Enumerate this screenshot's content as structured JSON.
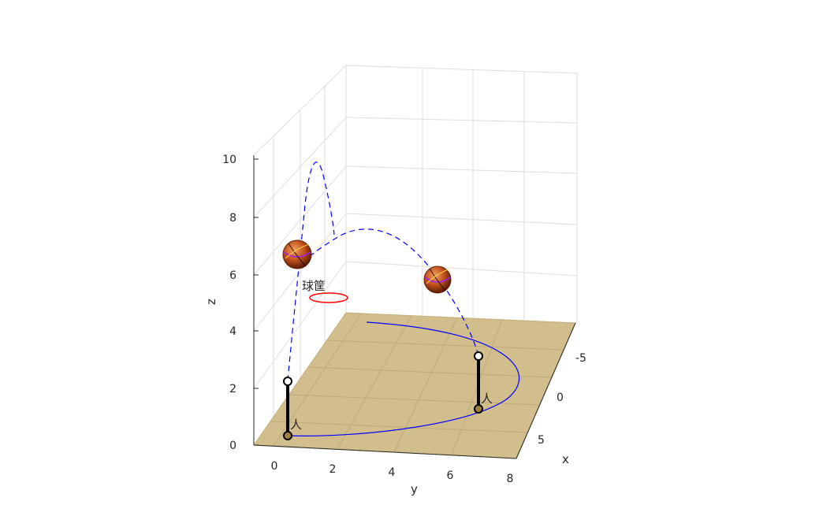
{
  "chart_data": {
    "type": "3d-line",
    "xlabel": "x",
    "ylabel": "y",
    "zlabel": "z",
    "x_ticks": [
      "-5",
      "0",
      "5"
    ],
    "y_ticks": [
      "0",
      "2",
      "4",
      "6",
      "8"
    ],
    "z_ticks": [
      "0",
      "2",
      "4",
      "6",
      "8",
      "10"
    ],
    "xlim": [
      -7,
      7
    ],
    "ylim": [
      -1,
      8
    ],
    "zlim": [
      0,
      10
    ],
    "grid": true,
    "floor_color": "#d2bd8c",
    "annotations": {
      "hoop": "球筐",
      "person1": "人",
      "person2": "人"
    },
    "hoop": {
      "x": 0,
      "y": 1.3,
      "z": 5.5,
      "color": "#ff0000"
    },
    "ground_path": {
      "color": "#0000ff",
      "description_points": [
        [
          0,
          0,
          0
        ],
        [
          5.5,
          3.0,
          0
        ],
        [
          0,
          8,
          0
        ],
        [
          -5.5,
          3.0,
          0
        ]
      ]
    },
    "trajectories": [
      {
        "color": "#0000ff",
        "style": "dashed",
        "peak_z": 9.8,
        "from": [
          0,
          0,
          2.2
        ],
        "to": [
          0,
          1.3,
          5.5
        ]
      },
      {
        "color": "#0000ff",
        "style": "dashed",
        "peak_z": 7.9,
        "from": [
          0,
          7.5,
          3.1
        ],
        "to": [
          0,
          1.3,
          5.5
        ]
      }
    ],
    "balls": [
      {
        "x": 0,
        "y": 0.9,
        "z": 6.5
      },
      {
        "x": 0,
        "y": 5.8,
        "z": 6.3
      }
    ],
    "persons": [
      {
        "base": [
          0,
          0,
          0.2
        ],
        "top": [
          0,
          0,
          2.1
        ]
      },
      {
        "base": [
          0,
          7.2,
          1.2
        ],
        "top": [
          0,
          7.4,
          3.1
        ]
      }
    ]
  }
}
